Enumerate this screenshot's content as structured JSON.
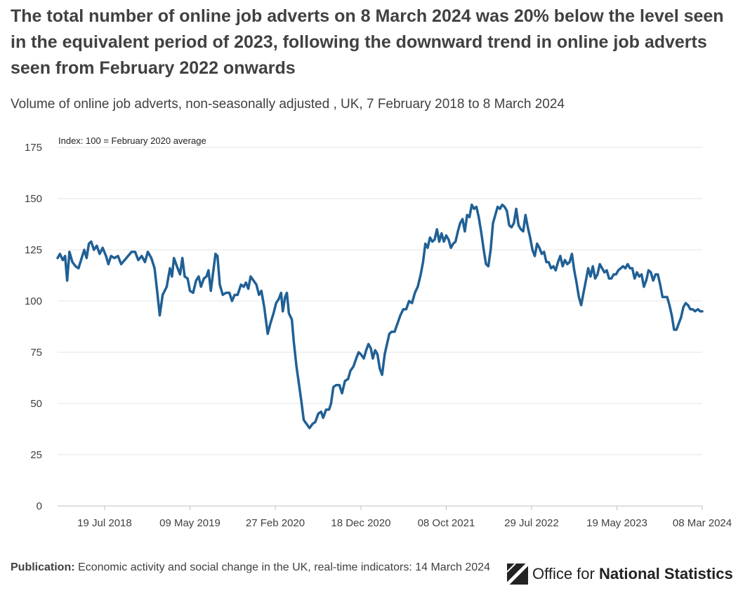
{
  "header": {
    "title": "The total number of online job adverts on 8 March 2024 was 20% below the level seen in the equivalent period of 2023, following the downward trend in online job adverts seen from February 2022 onwards",
    "subtitle": "Volume of online job adverts, non-seasonally adjusted , UK, 7 February 2018 to 8 March 2024"
  },
  "footer": {
    "publication_label": "Publication:",
    "publication_text": "Economic activity and social change in the UK, real-time indicators: 14 March 2024"
  },
  "logo": {
    "icon": "ons-logo-icon",
    "text_light": "Office for ",
    "text_bold": "National Statistics"
  },
  "colors": {
    "line": "#206095",
    "grid": "#e6e6e6",
    "axis": "#bfbfbf",
    "text": "#414042"
  },
  "chart_data": {
    "type": "line",
    "title": "The total number of online job adverts on 8 March 2024 was 20% below the level seen in the equivalent period of 2023, following the downward trend in online job adverts seen from February 2022 onwards",
    "subtitle": "Volume of online job adverts, non-seasonally adjusted , UK, 7 February 2018 to 8 March 2024",
    "ylabel": "Index: 100 = February 2020 average",
    "xlabel": "",
    "ylim": [
      0,
      175
    ],
    "yticks": [
      0,
      25,
      50,
      75,
      100,
      125,
      150,
      175
    ],
    "xlim": [
      "2018-02-07",
      "2024-03-08"
    ],
    "xticks": [
      {
        "date": "2018-07-19",
        "label": "19 Jul 2018"
      },
      {
        "date": "2019-05-09",
        "label": "09 May 2019"
      },
      {
        "date": "2020-02-27",
        "label": "27 Feb 2020"
      },
      {
        "date": "2020-12-18",
        "label": "18 Dec 2020"
      },
      {
        "date": "2021-10-08",
        "label": "08 Oct 2021"
      },
      {
        "date": "2022-07-29",
        "label": "29 Jul 2022"
      },
      {
        "date": "2023-05-19",
        "label": "19 May 2023"
      },
      {
        "date": "2024-03-08",
        "label": "08 Mar 2024"
      }
    ],
    "grid": true,
    "legend": "none",
    "series": [
      {
        "name": "",
        "points": [
          [
            "2018-02-07",
            121
          ],
          [
            "2018-02-15",
            123
          ],
          [
            "2018-02-25",
            120
          ],
          [
            "2018-03-05",
            122
          ],
          [
            "2018-03-12",
            110
          ],
          [
            "2018-03-20",
            124
          ],
          [
            "2018-03-30",
            119
          ],
          [
            "2018-04-10",
            117
          ],
          [
            "2018-04-20",
            116
          ],
          [
            "2018-05-01",
            121
          ],
          [
            "2018-05-10",
            125
          ],
          [
            "2018-05-18",
            121
          ],
          [
            "2018-05-26",
            128
          ],
          [
            "2018-06-03",
            129
          ],
          [
            "2018-06-12",
            125
          ],
          [
            "2018-06-22",
            127
          ],
          [
            "2018-07-02",
            123
          ],
          [
            "2018-07-12",
            126
          ],
          [
            "2018-07-24",
            122
          ],
          [
            "2018-08-01",
            118
          ],
          [
            "2018-08-10",
            122
          ],
          [
            "2018-08-22",
            121
          ],
          [
            "2018-09-03",
            122
          ],
          [
            "2018-09-14",
            118
          ],
          [
            "2018-09-26",
            120
          ],
          [
            "2018-10-08",
            122
          ],
          [
            "2018-10-20",
            124
          ],
          [
            "2018-11-01",
            124
          ],
          [
            "2018-11-12",
            120
          ],
          [
            "2018-11-24",
            122
          ],
          [
            "2018-12-05",
            119
          ],
          [
            "2018-12-15",
            124
          ],
          [
            "2018-12-27",
            121
          ],
          [
            "2019-01-07",
            116
          ],
          [
            "2019-01-15",
            106
          ],
          [
            "2019-01-25",
            93
          ],
          [
            "2019-02-04",
            103
          ],
          [
            "2019-02-18",
            107
          ],
          [
            "2019-03-01",
            116
          ],
          [
            "2019-03-08",
            112
          ],
          [
            "2019-03-15",
            121
          ],
          [
            "2019-03-25",
            117
          ],
          [
            "2019-04-05",
            113
          ],
          [
            "2019-04-13",
            121
          ],
          [
            "2019-04-21",
            112
          ],
          [
            "2019-05-01",
            111
          ],
          [
            "2019-05-09",
            105
          ],
          [
            "2019-05-20",
            104
          ],
          [
            "2019-05-30",
            110
          ],
          [
            "2019-06-08",
            112
          ],
          [
            "2019-06-16",
            107
          ],
          [
            "2019-06-26",
            111
          ],
          [
            "2019-07-05",
            112
          ],
          [
            "2019-07-12",
            115
          ],
          [
            "2019-07-20",
            105
          ],
          [
            "2019-07-28",
            114
          ],
          [
            "2019-08-05",
            123
          ],
          [
            "2019-08-12",
            122
          ],
          [
            "2019-08-20",
            108
          ],
          [
            "2019-08-30",
            103
          ],
          [
            "2019-09-10",
            104
          ],
          [
            "2019-09-22",
            104
          ],
          [
            "2019-10-01",
            100
          ],
          [
            "2019-10-10",
            103
          ],
          [
            "2019-10-20",
            103
          ],
          [
            "2019-11-01",
            108
          ],
          [
            "2019-11-10",
            107
          ],
          [
            "2019-11-18",
            109
          ],
          [
            "2019-11-26",
            106
          ],
          [
            "2019-12-04",
            112
          ],
          [
            "2019-12-14",
            110
          ],
          [
            "2019-12-24",
            108
          ],
          [
            "2020-01-02",
            103
          ],
          [
            "2020-01-10",
            105
          ],
          [
            "2020-01-20",
            97
          ],
          [
            "2020-02-01",
            84
          ],
          [
            "2020-02-10",
            89
          ],
          [
            "2020-02-21",
            94
          ],
          [
            "2020-03-01",
            99
          ],
          [
            "2020-03-10",
            101
          ],
          [
            "2020-03-18",
            104
          ],
          [
            "2020-03-24",
            95
          ],
          [
            "2020-04-01",
            102
          ],
          [
            "2020-04-07",
            104
          ],
          [
            "2020-04-14",
            94
          ],
          [
            "2020-04-24",
            91
          ],
          [
            "2020-05-01",
            80
          ],
          [
            "2020-05-10",
            68
          ],
          [
            "2020-05-18",
            60
          ],
          [
            "2020-05-26",
            52
          ],
          [
            "2020-06-04",
            42
          ],
          [
            "2020-06-14",
            40
          ],
          [
            "2020-06-24",
            38
          ],
          [
            "2020-07-04",
            40
          ],
          [
            "2020-07-14",
            41
          ],
          [
            "2020-07-24",
            45
          ],
          [
            "2020-08-03",
            46
          ],
          [
            "2020-08-10",
            43
          ],
          [
            "2020-08-20",
            47
          ],
          [
            "2020-08-30",
            47
          ],
          [
            "2020-09-06",
            50
          ],
          [
            "2020-09-14",
            58
          ],
          [
            "2020-09-24",
            59
          ],
          [
            "2020-10-05",
            59
          ],
          [
            "2020-10-14",
            55
          ],
          [
            "2020-10-24",
            61
          ],
          [
            "2020-11-04",
            62
          ],
          [
            "2020-11-12",
            66
          ],
          [
            "2020-11-22",
            68
          ],
          [
            "2020-12-02",
            72
          ],
          [
            "2020-12-10",
            75
          ],
          [
            "2020-12-18",
            74
          ],
          [
            "2020-12-28",
            72
          ],
          [
            "2021-01-05",
            76
          ],
          [
            "2021-01-13",
            79
          ],
          [
            "2021-01-21",
            77
          ],
          [
            "2021-01-28",
            72
          ],
          [
            "2021-02-05",
            76
          ],
          [
            "2021-02-13",
            74
          ],
          [
            "2021-02-21",
            67
          ],
          [
            "2021-03-01",
            64
          ],
          [
            "2021-03-10",
            74
          ],
          [
            "2021-03-18",
            79
          ],
          [
            "2021-03-26",
            84
          ],
          [
            "2021-04-03",
            85
          ],
          [
            "2021-04-13",
            85
          ],
          [
            "2021-04-23",
            89
          ],
          [
            "2021-05-03",
            93
          ],
          [
            "2021-05-13",
            96
          ],
          [
            "2021-05-23",
            96
          ],
          [
            "2021-06-02",
            100
          ],
          [
            "2021-06-12",
            99
          ],
          [
            "2021-06-22",
            104
          ],
          [
            "2021-07-02",
            107
          ],
          [
            "2021-07-12",
            113
          ],
          [
            "2021-07-20",
            119
          ],
          [
            "2021-07-28",
            128
          ],
          [
            "2021-08-05",
            126
          ],
          [
            "2021-08-13",
            131
          ],
          [
            "2021-08-21",
            129
          ],
          [
            "2021-08-29",
            130
          ],
          [
            "2021-09-06",
            135
          ],
          [
            "2021-09-14",
            129
          ],
          [
            "2021-09-22",
            133
          ],
          [
            "2021-09-30",
            129
          ],
          [
            "2021-10-08",
            132
          ],
          [
            "2021-10-16",
            130
          ],
          [
            "2021-10-24",
            126
          ],
          [
            "2021-11-01",
            128
          ],
          [
            "2021-11-09",
            129
          ],
          [
            "2021-11-17",
            134
          ],
          [
            "2021-11-25",
            138
          ],
          [
            "2021-12-03",
            140
          ],
          [
            "2021-12-11",
            134
          ],
          [
            "2021-12-19",
            142
          ],
          [
            "2021-12-27",
            141
          ],
          [
            "2022-01-04",
            147
          ],
          [
            "2022-01-12",
            145
          ],
          [
            "2022-01-20",
            146
          ],
          [
            "2022-01-28",
            141
          ],
          [
            "2022-02-06",
            133
          ],
          [
            "2022-02-14",
            125
          ],
          [
            "2022-02-22",
            118
          ],
          [
            "2022-03-02",
            117
          ],
          [
            "2022-03-10",
            125
          ],
          [
            "2022-03-18",
            138
          ],
          [
            "2022-03-26",
            142
          ],
          [
            "2022-04-03",
            146
          ],
          [
            "2022-04-11",
            145
          ],
          [
            "2022-04-19",
            147
          ],
          [
            "2022-04-27",
            146
          ],
          [
            "2022-05-05",
            144
          ],
          [
            "2022-05-13",
            137
          ],
          [
            "2022-05-21",
            136
          ],
          [
            "2022-05-29",
            138
          ],
          [
            "2022-06-06",
            145
          ],
          [
            "2022-06-14",
            137
          ],
          [
            "2022-06-22",
            135
          ],
          [
            "2022-06-30",
            134
          ],
          [
            "2022-07-08",
            142
          ],
          [
            "2022-07-16",
            136
          ],
          [
            "2022-07-24",
            131
          ],
          [
            "2022-08-01",
            125
          ],
          [
            "2022-08-09",
            122
          ],
          [
            "2022-08-17",
            128
          ],
          [
            "2022-08-25",
            126
          ],
          [
            "2022-09-02",
            123
          ],
          [
            "2022-09-10",
            124
          ],
          [
            "2022-09-18",
            119
          ],
          [
            "2022-09-26",
            119
          ],
          [
            "2022-10-04",
            116
          ],
          [
            "2022-10-12",
            117
          ],
          [
            "2022-10-20",
            115
          ],
          [
            "2022-10-28",
            119
          ],
          [
            "2022-11-05",
            122
          ],
          [
            "2022-11-13",
            117
          ],
          [
            "2022-11-21",
            120
          ],
          [
            "2022-11-29",
            118
          ],
          [
            "2022-12-07",
            119
          ],
          [
            "2022-12-15",
            123
          ],
          [
            "2022-12-23",
            115
          ],
          [
            "2022-12-31",
            109
          ],
          [
            "2023-01-08",
            102
          ],
          [
            "2023-01-16",
            98
          ],
          [
            "2023-01-24",
            104
          ],
          [
            "2023-02-01",
            110
          ],
          [
            "2023-02-09",
            116
          ],
          [
            "2023-02-17",
            112
          ],
          [
            "2023-02-25",
            117
          ],
          [
            "2023-03-05",
            111
          ],
          [
            "2023-03-13",
            113
          ],
          [
            "2023-03-21",
            118
          ],
          [
            "2023-03-29",
            116
          ],
          [
            "2023-04-06",
            114
          ],
          [
            "2023-04-14",
            115
          ],
          [
            "2023-04-22",
            111
          ],
          [
            "2023-04-30",
            111
          ],
          [
            "2023-05-08",
            113
          ],
          [
            "2023-05-16",
            113
          ],
          [
            "2023-05-24",
            115
          ],
          [
            "2023-06-01",
            116
          ],
          [
            "2023-06-09",
            117
          ],
          [
            "2023-06-17",
            116
          ],
          [
            "2023-06-25",
            118
          ],
          [
            "2023-07-03",
            116
          ],
          [
            "2023-07-11",
            116
          ],
          [
            "2023-07-19",
            111
          ],
          [
            "2023-07-27",
            114
          ],
          [
            "2023-08-04",
            112
          ],
          [
            "2023-08-12",
            113
          ],
          [
            "2023-08-20",
            107
          ],
          [
            "2023-08-28",
            110
          ],
          [
            "2023-09-05",
            115
          ],
          [
            "2023-09-13",
            114
          ],
          [
            "2023-09-21",
            110
          ],
          [
            "2023-09-29",
            113
          ],
          [
            "2023-10-07",
            113
          ],
          [
            "2023-10-15",
            108
          ],
          [
            "2023-10-23",
            102
          ],
          [
            "2023-10-31",
            102
          ],
          [
            "2023-11-08",
            102
          ],
          [
            "2023-11-16",
            98
          ],
          [
            "2023-11-24",
            93
          ],
          [
            "2023-12-02",
            86
          ],
          [
            "2023-12-10",
            86
          ],
          [
            "2023-12-18",
            89
          ],
          [
            "2023-12-26",
            92
          ],
          [
            "2024-01-03",
            97
          ],
          [
            "2024-01-11",
            99
          ],
          [
            "2024-01-19",
            98
          ],
          [
            "2024-01-27",
            96
          ],
          [
            "2024-02-04",
            96
          ],
          [
            "2024-02-12",
            95
          ],
          [
            "2024-02-22",
            96
          ],
          [
            "2024-03-01",
            95
          ],
          [
            "2024-03-08",
            95
          ]
        ]
      }
    ]
  }
}
